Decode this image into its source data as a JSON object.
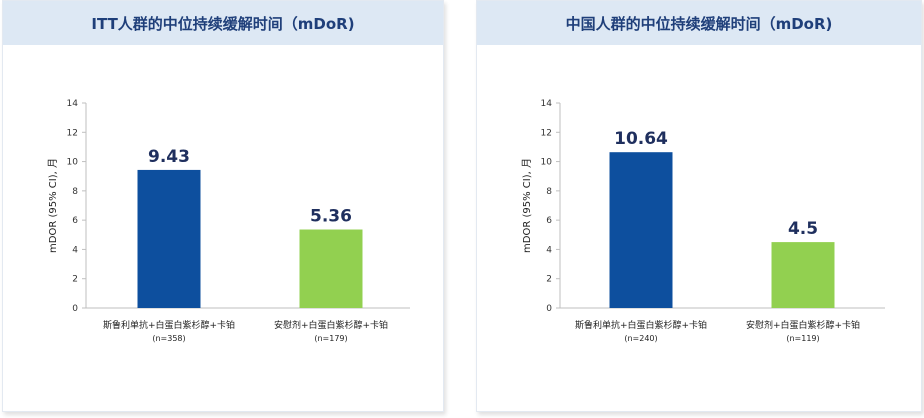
{
  "colors": {
    "series_blue": "#0d4f9e",
    "series_green": "#92d050",
    "header_bg": "#dde8f4",
    "title": "#1f3f7a"
  },
  "chart_data": [
    {
      "type": "bar",
      "title": "ITT人群的中位持续缓解时间（mDoR)",
      "ylabel": "mDOR (95% CI), 月",
      "ylim": [
        0,
        14
      ],
      "yticks": [
        0,
        2,
        4,
        6,
        8,
        10,
        12,
        14
      ],
      "categories": [
        "斯鲁利单抗+白蛋白紫杉醇+卡铂",
        "安慰剂+白蛋白紫杉醇+卡铂"
      ],
      "category_n": [
        "(n=358)",
        "(n=179)"
      ],
      "values": [
        9.43,
        5.36
      ],
      "value_labels": [
        "9.43",
        "5.36"
      ],
      "bar_colors": [
        "#0d4f9e",
        "#92d050"
      ],
      "grid": false
    },
    {
      "type": "bar",
      "title": "中国人群的中位持续缓解时间（mDoR)",
      "ylabel": "mDOR (95% CI), 月",
      "ylim": [
        0,
        14
      ],
      "yticks": [
        0,
        2,
        4,
        6,
        8,
        10,
        12,
        14
      ],
      "categories": [
        "斯鲁利单抗+白蛋白紫杉醇+卡铂",
        "安慰剂+白蛋白紫杉醇+卡铂"
      ],
      "category_n": [
        "(n=240)",
        "(n=119)"
      ],
      "values": [
        10.64,
        4.5
      ],
      "value_labels": [
        "10.64",
        "4.5"
      ],
      "bar_colors": [
        "#0d4f9e",
        "#92d050"
      ],
      "grid": false
    }
  ]
}
